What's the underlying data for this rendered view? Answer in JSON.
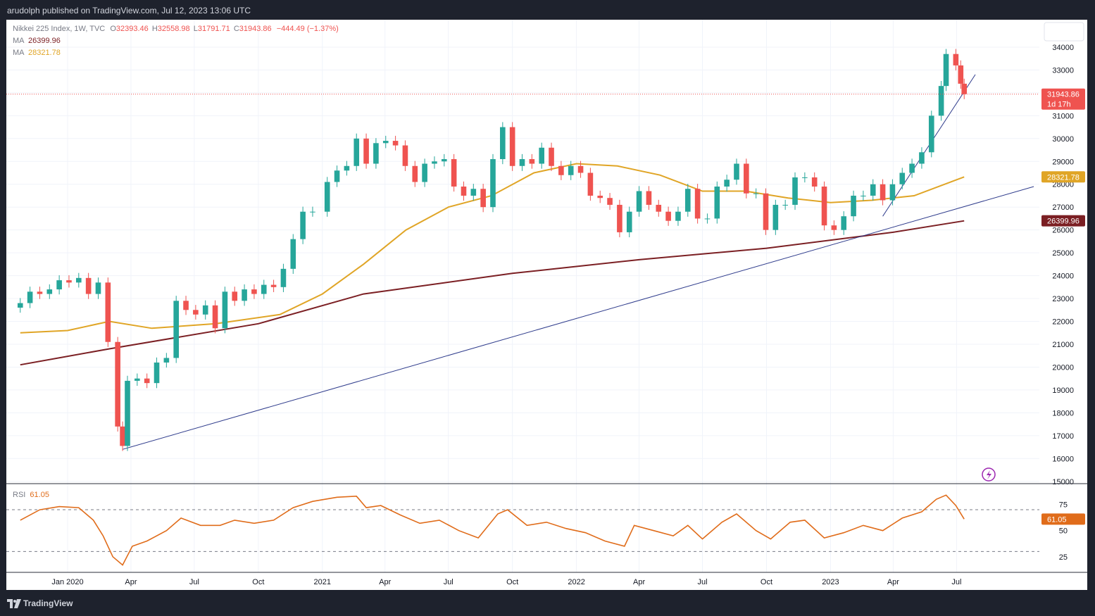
{
  "header": {
    "publisher": "arudolph published on TradingView.com, Jul 12, 2023 13:06 UTC"
  },
  "footer": {
    "brand": "TradingView",
    "logo_icon": "tradingview-logo-icon"
  },
  "legend": {
    "symbol": "Nikkei 225 Index, 1W, TVC",
    "open_label": "O",
    "open": "32393.46",
    "high_label": "H",
    "high": "32558.98",
    "low_label": "L",
    "low": "31791.71",
    "close_label": "C",
    "close": "31943.86",
    "change": "−444.49 (−1.37%)",
    "ma_label": "MA",
    "ma1": "26399.96",
    "ma2": "28321.78",
    "rsi_label": "RSI",
    "rsi": "61.05"
  },
  "badges": {
    "price": "31943.86",
    "countdown": "1d 17h",
    "ma_slow": "26399.96",
    "ma_fast": "28321.78",
    "rsi": "61.05"
  },
  "colors": {
    "up": "#26a69a",
    "down": "#ef5350",
    "ma_fast": "#e0a526",
    "ma_slow": "#7b1f23",
    "rsi": "#e06c1a",
    "trendline": "#2f3c8c",
    "price_line": "#ef5350",
    "frame": "#1e222d"
  },
  "chart_data": [
    {
      "type": "candlestick",
      "title": "Nikkei 225 Index, 1W, TVC",
      "x_ticks": [
        "Jan 2020",
        "Apr",
        "Jul",
        "Oct",
        "2021",
        "Apr",
        "Jul",
        "Oct",
        "2022",
        "Apr",
        "Jul",
        "Oct",
        "2023",
        "Apr",
        "Jul"
      ],
      "x_tick_dates": [
        "2020-01-01",
        "2020-04-01",
        "2020-07-01",
        "2020-10-01",
        "2021-01-01",
        "2021-04-01",
        "2021-07-01",
        "2021-10-01",
        "2022-01-01",
        "2022-04-01",
        "2022-07-01",
        "2022-10-01",
        "2023-01-01",
        "2023-04-01",
        "2023-07-01"
      ],
      "y_ticks": [
        15000,
        16000,
        17000,
        18000,
        19000,
        20000,
        21000,
        22000,
        23000,
        24000,
        25000,
        26000,
        27000,
        28000,
        29000,
        30000,
        31000,
        32000,
        33000,
        34000
      ],
      "ylim": [
        14900,
        35200
      ],
      "last_close": 31943.86,
      "close_series": [
        [
          "2019-10-25",
          22800
        ],
        [
          "2019-11-08",
          23300
        ],
        [
          "2019-11-22",
          23200
        ],
        [
          "2019-12-06",
          23400
        ],
        [
          "2019-12-20",
          23800
        ],
        [
          "2020-01-03",
          23700
        ],
        [
          "2020-01-17",
          23900
        ],
        [
          "2020-01-31",
          23200
        ],
        [
          "2020-02-14",
          23700
        ],
        [
          "2020-02-28",
          21100
        ],
        [
          "2020-03-13",
          17400
        ],
        [
          "2020-03-20",
          16550
        ],
        [
          "2020-03-27",
          19400
        ],
        [
          "2020-04-10",
          19500
        ],
        [
          "2020-04-24",
          19300
        ],
        [
          "2020-05-08",
          20200
        ],
        [
          "2020-05-22",
          20400
        ],
        [
          "2020-06-05",
          22900
        ],
        [
          "2020-06-19",
          22500
        ],
        [
          "2020-07-03",
          22300
        ],
        [
          "2020-07-17",
          22700
        ],
        [
          "2020-07-31",
          21700
        ],
        [
          "2020-08-14",
          23300
        ],
        [
          "2020-08-28",
          22900
        ],
        [
          "2020-09-11",
          23400
        ],
        [
          "2020-09-25",
          23200
        ],
        [
          "2020-10-09",
          23600
        ],
        [
          "2020-10-23",
          23500
        ],
        [
          "2020-11-06",
          24300
        ],
        [
          "2020-11-20",
          25600
        ],
        [
          "2020-12-04",
          26800
        ],
        [
          "2020-12-18",
          26800
        ],
        [
          "2021-01-08",
          28100
        ],
        [
          "2021-01-22",
          28600
        ],
        [
          "2021-02-05",
          28800
        ],
        [
          "2021-02-19",
          30000
        ],
        [
          "2021-03-05",
          28900
        ],
        [
          "2021-03-19",
          29800
        ],
        [
          "2021-04-02",
          29900
        ],
        [
          "2021-04-16",
          29700
        ],
        [
          "2021-04-30",
          28800
        ],
        [
          "2021-05-14",
          28100
        ],
        [
          "2021-05-28",
          28900
        ],
        [
          "2021-06-11",
          29000
        ],
        [
          "2021-06-25",
          29100
        ],
        [
          "2021-07-09",
          27900
        ],
        [
          "2021-07-23",
          27500
        ],
        [
          "2021-08-06",
          27800
        ],
        [
          "2021-08-20",
          27000
        ],
        [
          "2021-09-03",
          29100
        ],
        [
          "2021-09-17",
          30500
        ],
        [
          "2021-10-01",
          28800
        ],
        [
          "2021-10-15",
          29100
        ],
        [
          "2021-10-29",
          28900
        ],
        [
          "2021-11-12",
          29600
        ],
        [
          "2021-11-26",
          28800
        ],
        [
          "2021-12-10",
          28400
        ],
        [
          "2021-12-24",
          28800
        ],
        [
          "2022-01-07",
          28500
        ],
        [
          "2022-01-21",
          27500
        ],
        [
          "2022-02-04",
          27400
        ],
        [
          "2022-02-18",
          27100
        ],
        [
          "2022-03-04",
          25900
        ],
        [
          "2022-03-18",
          26800
        ],
        [
          "2022-04-01",
          27700
        ],
        [
          "2022-04-15",
          27100
        ],
        [
          "2022-04-29",
          26800
        ],
        [
          "2022-05-13",
          26400
        ],
        [
          "2022-05-27",
          26800
        ],
        [
          "2022-06-10",
          27800
        ],
        [
          "2022-06-24",
          26500
        ],
        [
          "2022-07-08",
          26500
        ],
        [
          "2022-07-22",
          27900
        ],
        [
          "2022-08-05",
          28200
        ],
        [
          "2022-08-19",
          28900
        ],
        [
          "2022-09-02",
          27600
        ],
        [
          "2022-09-16",
          27600
        ],
        [
          "2022-09-30",
          26000
        ],
        [
          "2022-10-14",
          27100
        ],
        [
          "2022-10-28",
          27100
        ],
        [
          "2022-11-11",
          28300
        ],
        [
          "2022-11-25",
          28300
        ],
        [
          "2022-12-09",
          27900
        ],
        [
          "2022-12-23",
          26200
        ],
        [
          "2023-01-06",
          26000
        ],
        [
          "2023-01-20",
          26600
        ],
        [
          "2023-02-03",
          27500
        ],
        [
          "2023-02-17",
          27500
        ],
        [
          "2023-03-03",
          28000
        ],
        [
          "2023-03-17",
          27300
        ],
        [
          "2023-03-31",
          28000
        ],
        [
          "2023-04-14",
          28500
        ],
        [
          "2023-04-28",
          28900
        ],
        [
          "2023-05-12",
          29400
        ],
        [
          "2023-05-26",
          31000
        ],
        [
          "2023-06-09",
          32300
        ],
        [
          "2023-06-16",
          33700
        ],
        [
          "2023-06-30",
          33200
        ],
        [
          "2023-07-07",
          32400
        ],
        [
          "2023-07-12",
          31943.86
        ]
      ],
      "ma_slow_series": [
        [
          "2019-10-25",
          20100
        ],
        [
          "2020-03-01",
          20800
        ],
        [
          "2020-10-01",
          21900
        ],
        [
          "2021-03-01",
          23200
        ],
        [
          "2021-10-01",
          24100
        ],
        [
          "2022-04-01",
          24700
        ],
        [
          "2022-10-01",
          25200
        ],
        [
          "2023-04-01",
          25900
        ],
        [
          "2023-07-12",
          26399.96
        ]
      ],
      "ma_fast_series": [
        [
          "2019-10-25",
          21500
        ],
        [
          "2020-01-01",
          21600
        ],
        [
          "2020-03-01",
          22000
        ],
        [
          "2020-05-01",
          21700
        ],
        [
          "2020-08-01",
          21900
        ],
        [
          "2020-11-01",
          22300
        ],
        [
          "2021-01-01",
          23200
        ],
        [
          "2021-03-01",
          24500
        ],
        [
          "2021-05-01",
          26000
        ],
        [
          "2021-07-01",
          27000
        ],
        [
          "2021-09-01",
          27500
        ],
        [
          "2021-11-01",
          28500
        ],
        [
          "2022-01-01",
          28900
        ],
        [
          "2022-03-01",
          28800
        ],
        [
          "2022-05-01",
          28400
        ],
        [
          "2022-07-01",
          27700
        ],
        [
          "2022-09-01",
          27700
        ],
        [
          "2022-11-01",
          27400
        ],
        [
          "2023-01-01",
          27200
        ],
        [
          "2023-03-01",
          27300
        ],
        [
          "2023-05-01",
          27500
        ],
        [
          "2023-07-12",
          28321.78
        ]
      ],
      "trendlines": [
        {
          "from": [
            "2020-03-20",
            16400
          ],
          "to": [
            "2023-10-20",
            27900
          ]
        },
        {
          "from": [
            "2023-03-17",
            26600
          ],
          "to": [
            "2023-07-28",
            32800
          ]
        }
      ]
    },
    {
      "type": "line",
      "title": "RSI",
      "last_value": 61.05,
      "reference_lines": [
        70,
        30
      ],
      "y_ticks": [
        25,
        50,
        75
      ],
      "ylim": [
        10,
        95
      ],
      "series": [
        [
          "2019-10-25",
          60
        ],
        [
          "2019-11-22",
          70
        ],
        [
          "2019-12-20",
          73
        ],
        [
          "2020-01-17",
          72
        ],
        [
          "2020-02-07",
          60
        ],
        [
          "2020-02-21",
          45
        ],
        [
          "2020-03-06",
          25
        ],
        [
          "2020-03-20",
          17
        ],
        [
          "2020-04-03",
          35
        ],
        [
          "2020-04-24",
          40
        ],
        [
          "2020-05-22",
          50
        ],
        [
          "2020-06-12",
          62
        ],
        [
          "2020-07-10",
          55
        ],
        [
          "2020-08-07",
          55
        ],
        [
          "2020-08-28",
          60
        ],
        [
          "2020-09-25",
          57
        ],
        [
          "2020-10-23",
          60
        ],
        [
          "2020-11-20",
          72
        ],
        [
          "2020-12-18",
          78
        ],
        [
          "2021-01-22",
          82
        ],
        [
          "2021-02-19",
          83
        ],
        [
          "2021-03-05",
          72
        ],
        [
          "2021-03-26",
          74
        ],
        [
          "2021-04-23",
          65
        ],
        [
          "2021-05-21",
          57
        ],
        [
          "2021-06-18",
          60
        ],
        [
          "2021-07-16",
          50
        ],
        [
          "2021-08-13",
          43
        ],
        [
          "2021-09-10",
          66
        ],
        [
          "2021-09-24",
          70
        ],
        [
          "2021-10-22",
          55
        ],
        [
          "2021-11-19",
          58
        ],
        [
          "2021-12-17",
          52
        ],
        [
          "2022-01-14",
          48
        ],
        [
          "2022-02-11",
          40
        ],
        [
          "2022-03-11",
          35
        ],
        [
          "2022-03-25",
          55
        ],
        [
          "2022-04-22",
          50
        ],
        [
          "2022-05-20",
          45
        ],
        [
          "2022-06-10",
          55
        ],
        [
          "2022-07-01",
          42
        ],
        [
          "2022-07-29",
          58
        ],
        [
          "2022-08-19",
          66
        ],
        [
          "2022-09-16",
          50
        ],
        [
          "2022-10-07",
          42
        ],
        [
          "2022-11-04",
          58
        ],
        [
          "2022-11-25",
          60
        ],
        [
          "2022-12-23",
          43
        ],
        [
          "2023-01-20",
          48
        ],
        [
          "2023-02-17",
          55
        ],
        [
          "2023-03-17",
          50
        ],
        [
          "2023-04-14",
          62
        ],
        [
          "2023-05-12",
          68
        ],
        [
          "2023-06-02",
          80
        ],
        [
          "2023-06-16",
          84
        ],
        [
          "2023-06-30",
          74
        ],
        [
          "2023-07-12",
          61.05
        ]
      ]
    }
  ]
}
